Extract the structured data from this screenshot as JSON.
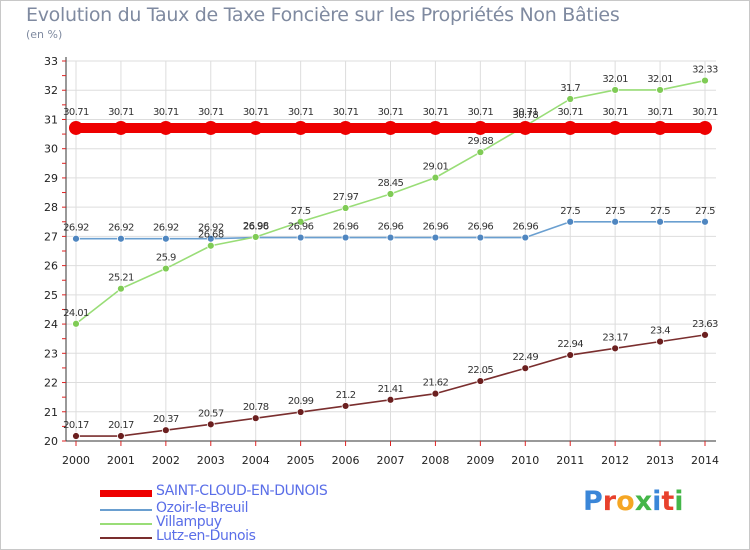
{
  "title": "Evolution du Taux de Taxe Foncière sur les Propriétés Non Bâties",
  "unit_label": "(en %)",
  "logo": {
    "text": "Proxiti",
    "colors": [
      "#3a86d8",
      "#e8412c",
      "#f5a623",
      "#44b649",
      "#3a86d8",
      "#e8412c",
      "#44b649"
    ]
  },
  "chart_data": {
    "type": "line",
    "title": "Evolution du Taux de Taxe Foncière sur les Propriétés Non Bâties",
    "ylabel": "(en %)",
    "xlabel": "",
    "ylim": [
      20,
      33
    ],
    "yticks": [
      20,
      21,
      22,
      23,
      24,
      25,
      26,
      27,
      28,
      29,
      30,
      31,
      32,
      33
    ],
    "categories": [
      "2000",
      "2001",
      "2002",
      "2003",
      "2004",
      "2005",
      "2006",
      "2007",
      "2008",
      "2009",
      "2010",
      "2011",
      "2012",
      "2013",
      "2014"
    ],
    "grid": true,
    "series": [
      {
        "name": "SAINT-CLOUD-EN-DUNOIS",
        "color": "#ee0000",
        "marker": "#ee0000",
        "thick": true,
        "values": [
          30.71,
          30.71,
          30.71,
          30.71,
          30.71,
          30.71,
          30.71,
          30.71,
          30.71,
          30.71,
          30.71,
          30.71,
          30.71,
          30.71,
          30.71
        ],
        "labels": [
          "30.71",
          "30.71",
          "30.71",
          "30.71",
          "30.71",
          "30.71",
          "30.71",
          "30.71",
          "30.71",
          "30.71",
          "30.71",
          "30.71",
          "30.71",
          "30.71",
          "30.71"
        ]
      },
      {
        "name": "Ozoir-le-Breuil",
        "color": "#6a9fd0",
        "marker": "#4f86c0",
        "thick": false,
        "values": [
          26.92,
          26.92,
          26.92,
          26.92,
          26.96,
          26.96,
          26.96,
          26.96,
          26.96,
          26.96,
          26.96,
          27.5,
          27.5,
          27.5,
          27.5
        ],
        "labels": [
          "26.92",
          "26.92",
          "26.92",
          "26.92",
          "26.96",
          "26.96",
          "26.96",
          "26.96",
          "26.96",
          "26.96",
          "26.96",
          "27.5",
          "27.5",
          "27.5",
          "27.5"
        ]
      },
      {
        "name": "Villampuy",
        "color": "#99dd77",
        "marker": "#7fcb55",
        "thick": false,
        "values": [
          24.01,
          25.21,
          25.9,
          26.68,
          26.98,
          27.5,
          27.97,
          28.45,
          29.01,
          29.88,
          30.78,
          31.7,
          32.01,
          32.01,
          32.33
        ],
        "labels": [
          "24.01",
          "25.21",
          "25.9",
          "26.68",
          "26.98",
          "27.5",
          "27.97",
          "28.45",
          "29.01",
          "29.88",
          "30.78",
          "31.7",
          "32.01",
          "32.01",
          "32.33"
        ]
      },
      {
        "name": "Lutz-en-Dunois",
        "color": "#7a2e2e",
        "marker": "#6b1f1f",
        "thick": false,
        "values": [
          20.17,
          20.17,
          20.37,
          20.57,
          20.78,
          20.99,
          21.2,
          21.41,
          21.62,
          22.05,
          22.49,
          22.94,
          23.17,
          23.4,
          23.63
        ],
        "labels": [
          "20.17",
          "20.17",
          "20.37",
          "20.57",
          "20.78",
          "20.99",
          "21.2",
          "21.41",
          "21.62",
          "22.05",
          "22.49",
          "22.94",
          "23.17",
          "23.4",
          "23.63"
        ]
      }
    ],
    "legend_position": "bottom-left"
  }
}
